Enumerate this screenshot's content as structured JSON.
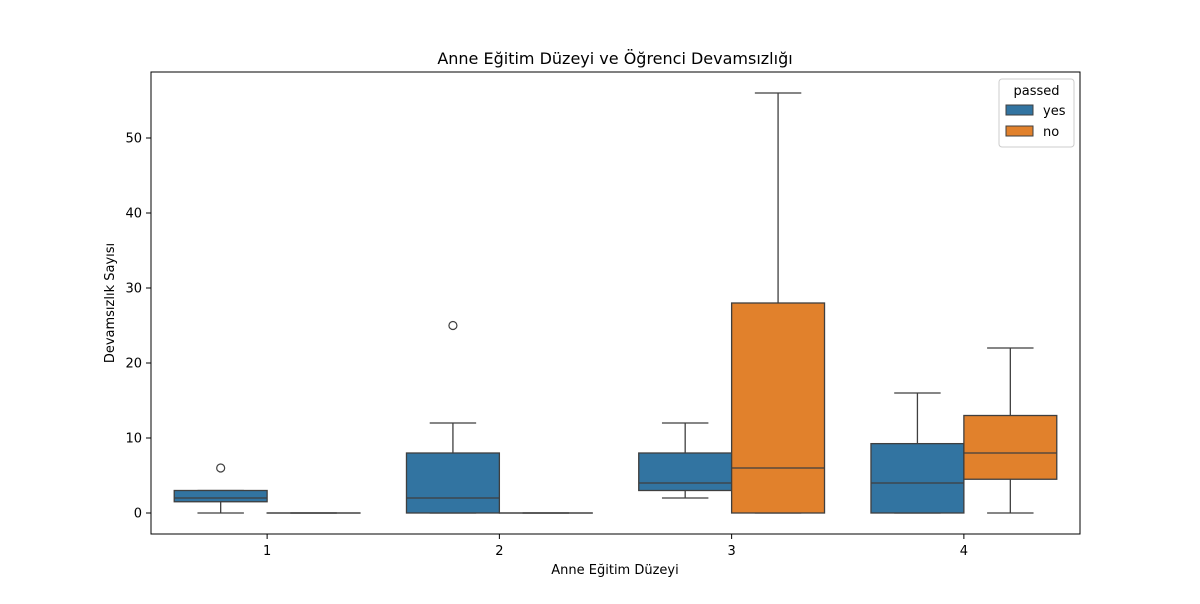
{
  "chart_data": {
    "type": "boxplot",
    "title": "Anne Eğitim Düzeyi ve Öğrenci Devamsızlığı",
    "xlabel": "Anne Eğitim Düzeyi",
    "ylabel": "Devamsızlık Sayısı",
    "categories": [
      "1",
      "2",
      "3",
      "4"
    ],
    "ylim": [
      -2.8,
      58.8
    ],
    "yticks": [
      0,
      10,
      20,
      30,
      40,
      50
    ],
    "grid": false,
    "legend": {
      "title": "passed",
      "position": "top-right"
    },
    "series": [
      {
        "name": "yes",
        "color": "#3274a1",
        "boxes": [
          {
            "category": "1",
            "whisker_low": 0,
            "q1": 1.5,
            "median": 2,
            "q3": 3,
            "whisker_high": 3,
            "outliers": [
              6
            ]
          },
          {
            "category": "2",
            "whisker_low": 0,
            "q1": 0,
            "median": 2,
            "q3": 8,
            "whisker_high": 12,
            "outliers": [
              25
            ]
          },
          {
            "category": "3",
            "whisker_low": 2,
            "q1": 3,
            "median": 4,
            "q3": 8,
            "whisker_high": 12,
            "outliers": []
          },
          {
            "category": "4",
            "whisker_low": 0,
            "q1": 0,
            "median": 4,
            "q3": 9.25,
            "whisker_high": 16,
            "outliers": []
          }
        ]
      },
      {
        "name": "no",
        "color": "#e1812c",
        "boxes": [
          {
            "category": "1",
            "whisker_low": 0,
            "q1": 0,
            "median": 0,
            "q3": 0,
            "whisker_high": 0,
            "outliers": []
          },
          {
            "category": "2",
            "whisker_low": 0,
            "q1": 0,
            "median": 0,
            "q3": 0,
            "whisker_high": 0,
            "outliers": []
          },
          {
            "category": "3",
            "whisker_low": 0,
            "q1": 0,
            "median": 6,
            "q3": 28,
            "whisker_high": 56,
            "outliers": []
          },
          {
            "category": "4",
            "whisker_low": 0,
            "q1": 4.5,
            "median": 8,
            "q3": 13,
            "whisker_high": 22,
            "outliers": []
          }
        ]
      }
    ]
  }
}
